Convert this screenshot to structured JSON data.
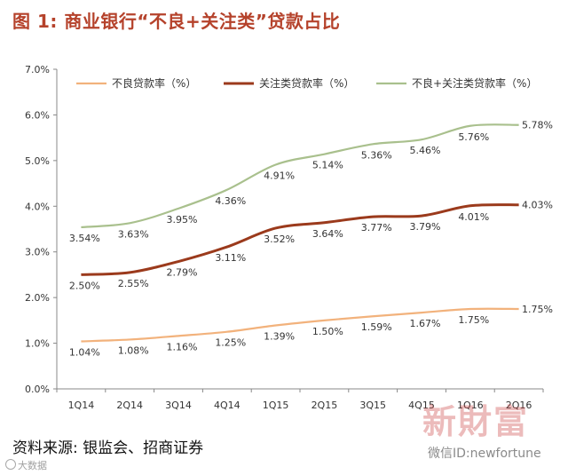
{
  "title": "图 1:  商业银行“不良+关注类”贷款占比",
  "source": "资料来源:  银监会、招商证券",
  "watermark": {
    "small": "大数据",
    "brand": "新財富",
    "id": "微信ID:newfortune"
  },
  "colors": {
    "title": "#b5422b",
    "npl": "#f2b27c",
    "special": "#9b3a1c",
    "combined": "#a9c08d"
  },
  "chart_data": {
    "type": "line",
    "categories": [
      "1Q14",
      "2Q14",
      "3Q14",
      "4Q14",
      "1Q15",
      "2Q15",
      "3Q15",
      "4Q15",
      "1Q16",
      "2Q16"
    ],
    "ylim": [
      0,
      7
    ],
    "yticks": [
      "0.0%",
      "1.0%",
      "2.0%",
      "3.0%",
      "4.0%",
      "5.0%",
      "6.0%",
      "7.0%"
    ],
    "grid": false,
    "legend_position": "top",
    "series": [
      {
        "key": "npl",
        "name": "不良贷款率（%）",
        "values": [
          1.04,
          1.08,
          1.16,
          1.25,
          1.39,
          1.5,
          1.59,
          1.67,
          1.75,
          1.75
        ],
        "labels": [
          "1.04%",
          "1.08%",
          "1.16%",
          "1.25%",
          "1.39%",
          "1.50%",
          "1.59%",
          "1.67%",
          "1.75%",
          "1.75%"
        ]
      },
      {
        "key": "special",
        "name": "关注类贷款率（%）",
        "values": [
          2.5,
          2.55,
          2.79,
          3.11,
          3.52,
          3.64,
          3.77,
          3.79,
          4.01,
          4.03
        ],
        "labels": [
          "2.50%",
          "2.55%",
          "2.79%",
          "3.11%",
          "3.52%",
          "3.64%",
          "3.77%",
          "3.79%",
          "4.01%",
          "4.03%"
        ]
      },
      {
        "key": "combined",
        "name": "不良+关注类贷款率（%）",
        "values": [
          3.54,
          3.63,
          3.95,
          4.36,
          4.91,
          5.14,
          5.36,
          5.46,
          5.76,
          5.78
        ],
        "labels": [
          "3.54%",
          "3.63%",
          "3.95%",
          "4.36%",
          "4.91%",
          "5.14%",
          "5.36%",
          "5.46%",
          "5.76%",
          "5.78%"
        ]
      }
    ]
  }
}
